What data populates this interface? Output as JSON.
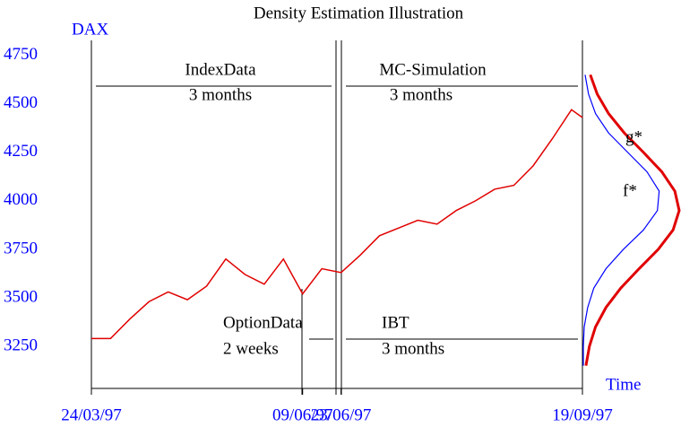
{
  "chart_data": [
    {
      "type": "line",
      "title": "Density Estimation Illustration",
      "y_label": "DAX",
      "x_label": "Time",
      "x": [
        "1997-03-24",
        "1997-03-31",
        "1997-04-07",
        "1997-04-14",
        "1997-04-21",
        "1997-04-28",
        "1997-05-05",
        "1997-05-12",
        "1997-05-19",
        "1997-05-26",
        "1997-06-02",
        "1997-06-09",
        "1997-06-16",
        "1997-06-23",
        "1997-06-30",
        "1997-07-07",
        "1997-07-14",
        "1997-07-21",
        "1997-07-28",
        "1997-08-04",
        "1997-08-11",
        "1997-08-18",
        "1997-08-25",
        "1997-09-01",
        "1997-09-08",
        "1997-09-15",
        "1997-09-19"
      ],
      "series": [
        {
          "name": "DAX",
          "color": "#e00000",
          "values": [
            3290,
            3290,
            3390,
            3480,
            3530,
            3490,
            3560,
            3700,
            3620,
            3570,
            3700,
            3520,
            3650,
            3630,
            3720,
            3820,
            3860,
            3900,
            3880,
            3950,
            4000,
            4060,
            4080,
            4180,
            4320,
            4470,
            4430
          ]
        }
      ],
      "xlim": [
        "1997-03-24",
        "1997-09-19"
      ],
      "xticks": [
        {
          "value": "1997-03-24",
          "label": "24/03/97"
        },
        {
          "value": "1997-06-09",
          "label": "09/06/97"
        },
        {
          "value": "1997-06-23",
          "label": "23/06/97"
        },
        {
          "value": "1997-09-19",
          "label": "19/09/97"
        }
      ],
      "ylim": [
        3000,
        4800
      ],
      "yticks": [
        3250,
        3500,
        3750,
        4000,
        4250,
        4500,
        4750
      ],
      "annotations": [
        "IndexData",
        "3 months",
        "MC-Simulation",
        "3 months",
        "OptionData",
        "2 weeks",
        "IBT",
        "3 months"
      ]
    },
    {
      "type": "density",
      "levels": [
        3150,
        3250,
        3350,
        3450,
        3550,
        3650,
        3750,
        3850,
        3950,
        4050,
        4150,
        4250,
        4350,
        4450,
        4550,
        4650
      ],
      "series": [
        {
          "name": "f*",
          "color": "#e00000",
          "values": [
            3,
            7,
            14,
            26,
            43,
            64,
            86,
            103,
            110,
            105,
            90,
            69,
            47,
            29,
            16,
            8
          ]
        },
        {
          "name": "g*",
          "color": "#0000ff",
          "values": [
            0,
            0,
            1,
            5,
            12,
            26,
            46,
            69,
            85,
            87,
            73,
            51,
            29,
            14,
            6,
            2
          ]
        }
      ],
      "xlim": [
        0,
        110
      ],
      "ylim": [
        3000,
        4800
      ]
    }
  ]
}
